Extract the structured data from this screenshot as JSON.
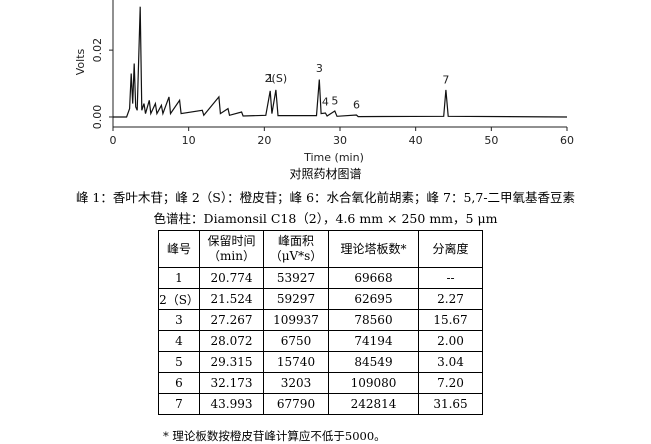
{
  "chart_data": {
    "type": "line",
    "xlabel": "Time (min)",
    "ylabel": "Volts",
    "xlim": [
      0,
      60
    ],
    "ylim": [
      -0.003,
      0.035
    ],
    "x_ticks": [
      "0",
      "10",
      "20",
      "30",
      "40",
      "50",
      "60"
    ],
    "y_ticks": [
      "0.00",
      "0.02"
    ],
    "trace": [
      [
        0,
        0.0
      ],
      [
        1.8,
        0.0
      ],
      [
        2.2,
        0.0025
      ],
      [
        2.4,
        0.013
      ],
      [
        2.6,
        0.004
      ],
      [
        2.8,
        0.016
      ],
      [
        3.0,
        0.003
      ],
      [
        3.2,
        0.002
      ],
      [
        3.6,
        0.033
      ],
      [
        3.8,
        0.002
      ],
      [
        4.1,
        0.004
      ],
      [
        4.3,
        0.001
      ],
      [
        4.8,
        0.005
      ],
      [
        5.0,
        0.001
      ],
      [
        5.6,
        0.004
      ],
      [
        5.8,
        0.001
      ],
      [
        6.4,
        0.0035
      ],
      [
        6.6,
        0.001
      ],
      [
        7.4,
        0.006
      ],
      [
        7.6,
        0.001
      ],
      [
        8.8,
        0.005
      ],
      [
        9.0,
        0.001
      ],
      [
        11.8,
        0.002
      ],
      [
        12.0,
        0.0005
      ],
      [
        14.0,
        0.006
      ],
      [
        14.2,
        0.001
      ],
      [
        15.2,
        0.0025
      ],
      [
        15.4,
        0.0005
      ],
      [
        17.0,
        0.0015
      ],
      [
        17.2,
        0.0003
      ],
      [
        20.2,
        0.0005
      ],
      [
        20.774,
        0.0078
      ],
      [
        21.0,
        0.001
      ],
      [
        21.524,
        0.0081
      ],
      [
        21.8,
        0.0004
      ],
      [
        26.9,
        0.0004
      ],
      [
        27.267,
        0.0112
      ],
      [
        27.5,
        0.001
      ],
      [
        28.072,
        0.0012
      ],
      [
        28.3,
        0.0003
      ],
      [
        29.315,
        0.0018
      ],
      [
        29.6,
        0.0002
      ],
      [
        32.173,
        0.0006
      ],
      [
        32.4,
        0.0001
      ],
      [
        43.7,
        0.0002
      ],
      [
        43.993,
        0.0081
      ],
      [
        44.3,
        0.0002
      ],
      [
        60,
        0.0
      ]
    ],
    "peak_labels": [
      {
        "text": "1",
        "x": 20.774,
        "y": 0.0105
      },
      {
        "text": "2(S)",
        "x": 21.524,
        "y": 0.0105
      },
      {
        "text": "3",
        "x": 27.267,
        "y": 0.0135
      },
      {
        "text": "4",
        "x": 28.072,
        "y": 0.0035
      },
      {
        "text": "5",
        "x": 29.315,
        "y": 0.0038
      },
      {
        "text": "6",
        "x": 32.173,
        "y": 0.0025
      },
      {
        "text": "7",
        "x": 43.993,
        "y": 0.01
      }
    ]
  },
  "figure_title": "对照药材图谱",
  "peak_legend": "峰 1：香叶木苷；峰 2（S）：橙皮苷；峰 6：水合氧化前胡素；峰 7：5,7-二甲氧基香豆素",
  "column_info": "色谱柱：Diamonsil C18（2），4.6 mm × 250 mm，5 μm",
  "table": {
    "headers": [
      {
        "line1": "峰号",
        "line2": ""
      },
      {
        "line1": "保留时间",
        "line2": "（min）"
      },
      {
        "line1": "峰面积",
        "line2": "（μV*s）"
      },
      {
        "line1": "理论塔板数*",
        "line2": ""
      },
      {
        "line1": "分离度",
        "line2": ""
      }
    ],
    "rows": [
      [
        "1",
        "20.774",
        "53927",
        "69668",
        "--"
      ],
      [
        "2（S）",
        "21.524",
        "59297",
        "62695",
        "2.27"
      ],
      [
        "3",
        "27.267",
        "109937",
        "78560",
        "15.67"
      ],
      [
        "4",
        "28.072",
        "6750",
        "74194",
        "2.00"
      ],
      [
        "5",
        "29.315",
        "15740",
        "84549",
        "3.04"
      ],
      [
        "6",
        "32.173",
        "3203",
        "109080",
        "7.20"
      ],
      [
        "7",
        "43.993",
        "67790",
        "242814",
        "31.65"
      ]
    ]
  },
  "footnote": "* 理论板数按橙皮苷峰计算应不低于5000。"
}
